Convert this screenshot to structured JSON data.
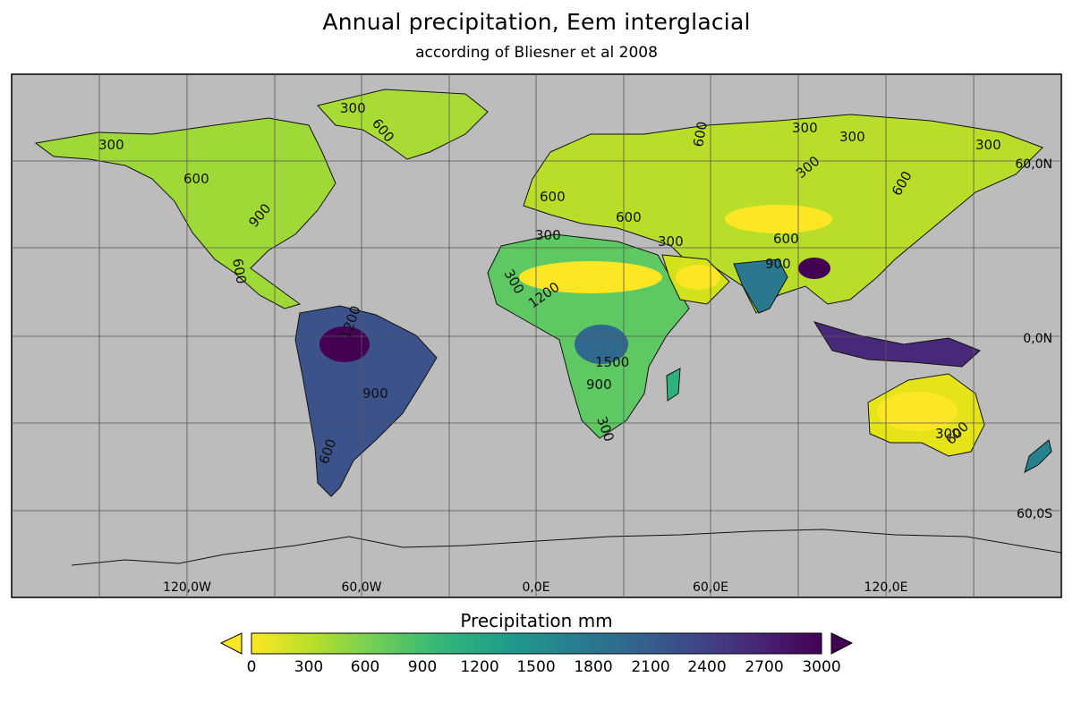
{
  "title": "Annual precipitation, Eem interglacial",
  "subtitle": "according of Bliesner et al 2008",
  "map": {
    "background_color": "#bcbcbc",
    "land_colors": {
      "dry": "#fde725",
      "mid": "#21918c",
      "wet": "#440154"
    },
    "lat_labels": [
      "60,0N",
      "0,0N",
      "60,0S"
    ],
    "lon_labels": [
      "120,0W",
      "60,0W",
      "0,0E",
      "60,0E",
      "120,0E"
    ],
    "contour_labels": [
      "300",
      "300",
      "300",
      "300",
      "300",
      "300",
      "300",
      "300",
      "300",
      "300",
      "300",
      "600",
      "600",
      "600",
      "600",
      "600",
      "600",
      "600",
      "600",
      "600",
      "900",
      "900",
      "900",
      "900",
      "1200",
      "1200",
      "1500",
      "600"
    ]
  },
  "colorbar": {
    "label": "Precipitation mm",
    "min": 0,
    "max": 3000,
    "colors": [
      "#fde725",
      "#b5de2b",
      "#6ece58",
      "#35b779",
      "#1f9e89",
      "#26828e",
      "#31688e",
      "#3e4989",
      "#482878",
      "#440154"
    ],
    "ticks": [
      "0",
      "300",
      "600",
      "900",
      "1200",
      "1500",
      "1800",
      "2100",
      "2400",
      "2700",
      "3000"
    ],
    "extend_min_color": "#fde725",
    "extend_max_color": "#440154"
  }
}
